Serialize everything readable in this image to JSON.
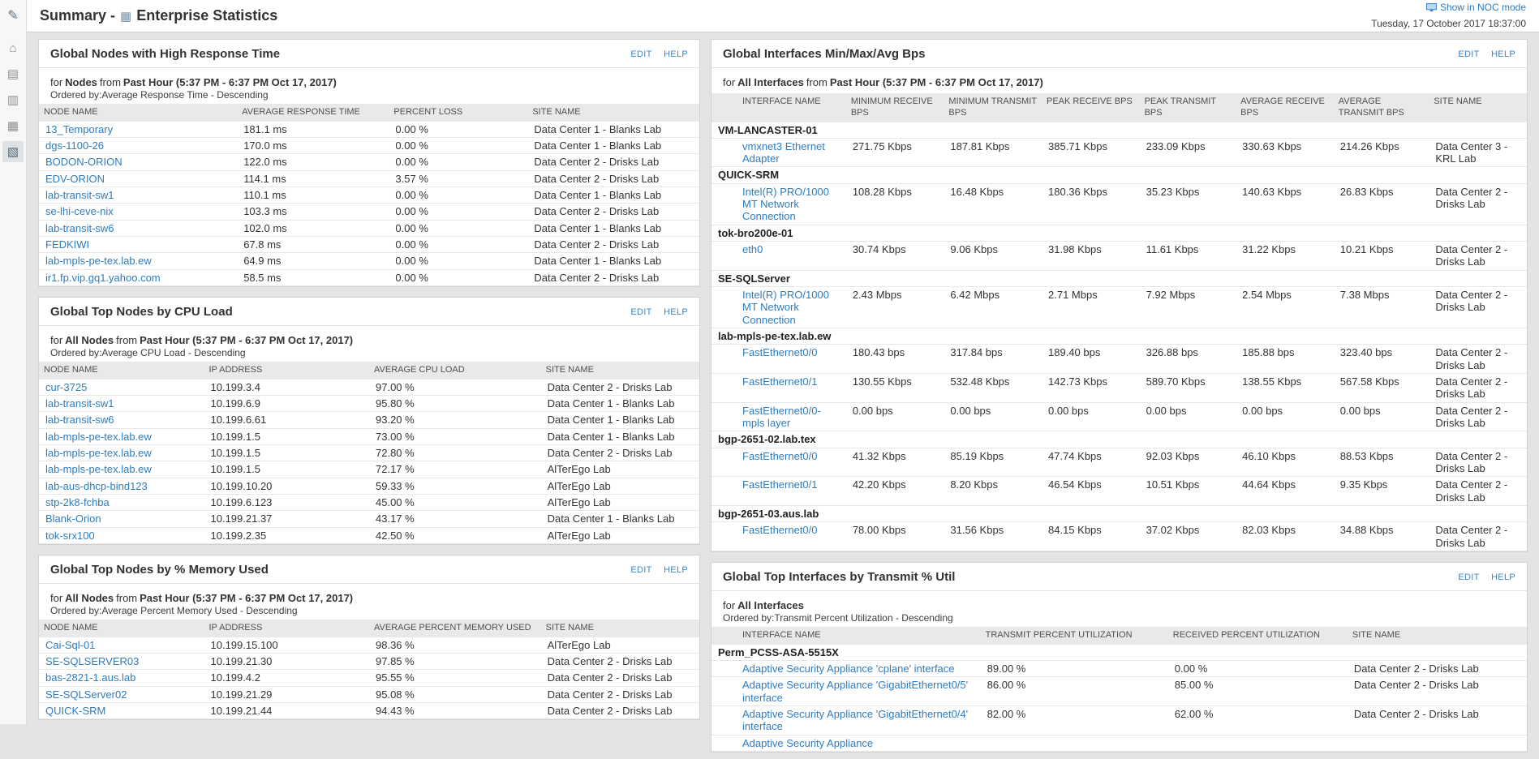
{
  "colors": {
    "link": "#2f7cbe",
    "background": "#e4e4e4",
    "panel": "#ffffff",
    "header_band": "#e9e9e9"
  },
  "sidebar": {
    "icons": [
      {
        "name": "pencil",
        "glyph": "✎"
      },
      {
        "name": "home",
        "glyph": "⌂"
      },
      {
        "name": "summary",
        "glyph": "▤"
      },
      {
        "name": "messages",
        "glyph": "▥"
      },
      {
        "name": "network",
        "glyph": "▦"
      },
      {
        "name": "reports",
        "glyph": "▧"
      }
    ]
  },
  "header": {
    "title_prefix": "Summary -",
    "title": "Enterprise Statistics",
    "noc_link": "Show in NOC mode",
    "timestamp": "Tuesday, 17 October 2017 18:37:00"
  },
  "actions": {
    "edit": "EDIT",
    "help": "HELP"
  },
  "panels": {
    "response_time": {
      "title": "Global Nodes with High Response Time",
      "for_pre": "for",
      "for_scope": "Nodes",
      "for_mid": "from",
      "for_range": "Past Hour (5:37 PM - 6:37 PM Oct 17, 2017)",
      "ordered_by": "Ordered by:Average Response Time - Descending",
      "columns": [
        "NODE NAME",
        "AVERAGE RESPONSE TIME",
        "PERCENT LOSS",
        "SITE NAME"
      ],
      "rows": [
        {
          "name": "13_Temporary",
          "cells": [
            "181.1 ms",
            "0.00 %",
            "Data Center 1 - Blanks Lab"
          ]
        },
        {
          "name": "dgs-1100-26",
          "cells": [
            "170.0 ms",
            "0.00 %",
            "Data Center 1 - Blanks Lab"
          ]
        },
        {
          "name": "BODON-ORION",
          "cells": [
            "122.0 ms",
            "0.00 %",
            "Data Center 2 - Drisks Lab"
          ]
        },
        {
          "name": "EDV-ORION",
          "cells": [
            "114.1 ms",
            "3.57 %",
            "Data Center 2 - Drisks Lab"
          ]
        },
        {
          "name": "lab-transit-sw1",
          "cells": [
            "110.1 ms",
            "0.00 %",
            "Data Center 1 - Blanks Lab"
          ]
        },
        {
          "name": "se-lhi-ceve-nix",
          "cells": [
            "103.3 ms",
            "0.00 %",
            "Data Center 2 - Drisks Lab"
          ]
        },
        {
          "name": "lab-transit-sw6",
          "cells": [
            "102.0 ms",
            "0.00 %",
            "Data Center 1 - Blanks Lab"
          ]
        },
        {
          "name": "FEDKIWI",
          "cells": [
            "67.8 ms",
            "0.00 %",
            "Data Center 2 - Drisks Lab"
          ]
        },
        {
          "name": "lab-mpls-pe-tex.lab.ew",
          "cells": [
            "64.9 ms",
            "0.00 %",
            "Data Center 1 - Blanks Lab"
          ]
        },
        {
          "name": "ir1.fp.vip.gq1.yahoo.com",
          "cells": [
            "58.5 ms",
            "0.00 %",
            "Data Center 2 - Drisks Lab"
          ]
        }
      ]
    },
    "cpu_load": {
      "title": "Global Top Nodes by CPU Load",
      "for_pre": "for",
      "for_scope": "All Nodes",
      "for_mid": "from",
      "for_range": "Past Hour (5:37 PM - 6:37 PM Oct 17, 2017)",
      "ordered_by": "Ordered by:Average CPU Load - Descending",
      "columns": [
        "NODE NAME",
        "IP ADDRESS",
        "AVERAGE CPU LOAD",
        "SITE NAME"
      ],
      "rows": [
        {
          "name": "cur-3725",
          "cells": [
            "10.199.3.4",
            "97.00 %",
            "Data Center 2 - Drisks Lab"
          ]
        },
        {
          "name": "lab-transit-sw1",
          "cells": [
            "10.199.6.9",
            "95.80 %",
            "Data Center 1 - Blanks Lab"
          ]
        },
        {
          "name": "lab-transit-sw6",
          "cells": [
            "10.199.6.61",
            "93.20 %",
            "Data Center 1 - Blanks Lab"
          ]
        },
        {
          "name": "lab-mpls-pe-tex.lab.ew",
          "cells": [
            "10.199.1.5",
            "73.00 %",
            "Data Center 1 - Blanks Lab"
          ]
        },
        {
          "name": "lab-mpls-pe-tex.lab.ew",
          "cells": [
            "10.199.1.5",
            "72.80 %",
            "Data Center 2 - Drisks Lab"
          ]
        },
        {
          "name": "lab-mpls-pe-tex.lab.ew",
          "cells": [
            "10.199.1.5",
            "72.17 %",
            "AlTerEgo Lab"
          ]
        },
        {
          "name": "lab-aus-dhcp-bind123",
          "cells": [
            "10.199.10.20",
            "59.33 %",
            "AlTerEgo Lab"
          ]
        },
        {
          "name": "stp-2k8-fchba",
          "cells": [
            "10.199.6.123",
            "45.00 %",
            "AlTerEgo Lab"
          ]
        },
        {
          "name": "Blank-Orion",
          "cells": [
            "10.199.21.37",
            "43.17 %",
            "Data Center 1 - Blanks Lab"
          ]
        },
        {
          "name": "tok-srx100",
          "cells": [
            "10.199.2.35",
            "42.50 %",
            "AlTerEgo Lab"
          ]
        }
      ]
    },
    "memory_used": {
      "title": "Global Top Nodes by % Memory Used",
      "for_pre": "for",
      "for_scope": "All Nodes",
      "for_mid": "from",
      "for_range": "Past Hour (5:37 PM - 6:37 PM Oct 17, 2017)",
      "ordered_by": "Ordered by:Average Percent Memory Used - Descending",
      "columns": [
        "NODE NAME",
        "IP ADDRESS",
        "AVERAGE PERCENT MEMORY USED",
        "SITE NAME"
      ],
      "rows": [
        {
          "name": "Cai-Sql-01",
          "cells": [
            "10.199.15.100",
            "98.36 %",
            "AlTerEgo Lab"
          ]
        },
        {
          "name": "SE-SQLSERVER03",
          "cells": [
            "10.199.21.30",
            "97.85 %",
            "Data Center 2 - Drisks Lab"
          ]
        },
        {
          "name": "bas-2821-1.aus.lab",
          "cells": [
            "10.199.4.2",
            "95.55 %",
            "Data Center 2 - Drisks Lab"
          ]
        },
        {
          "name": "SE-SQLServer02",
          "cells": [
            "10.199.21.29",
            "95.08 %",
            "Data Center 2 - Drisks Lab"
          ]
        },
        {
          "name": "QUICK-SRM",
          "cells": [
            "10.199.21.44",
            "94.43 %",
            "Data Center 2 - Drisks Lab"
          ]
        }
      ]
    },
    "interfaces_bps": {
      "title": "Global Interfaces Min/Max/Avg Bps",
      "for_pre": "for",
      "for_scope": "All Interfaces",
      "for_mid": "from",
      "for_range": "Past Hour (5:37 PM - 6:37 PM Oct 17, 2017)",
      "columns": [
        "INTERFACE NAME",
        "MINIMUM RECEIVE BPS",
        "MINIMUM TRANSMIT BPS",
        "PEAK RECEIVE BPS",
        "PEAK TRANSMIT BPS",
        "AVERAGE RECEIVE BPS",
        "AVERAGE TRANSMIT BPS",
        "SITE NAME"
      ],
      "rows": [
        {
          "group": "VM-LANCASTER-01"
        },
        {
          "name": "vmxnet3 Ethernet Adapter",
          "cells": [
            "271.75 Kbps",
            "187.81 Kbps",
            "385.71 Kbps",
            "233.09 Kbps",
            "330.63 Kbps",
            "214.26 Kbps",
            "Data Center 3 - KRL Lab"
          ]
        },
        {
          "group": "QUICK-SRM"
        },
        {
          "name": "Intel(R) PRO/1000 MT Network Connection",
          "cells": [
            "108.28 Kbps",
            "16.48 Kbps",
            "180.36 Kbps",
            "35.23 Kbps",
            "140.63 Kbps",
            "26.83 Kbps",
            "Data Center 2 - Drisks Lab"
          ]
        },
        {
          "group": "tok-bro200e-01"
        },
        {
          "name": "eth0",
          "cells": [
            "30.74 Kbps",
            "9.06 Kbps",
            "31.98 Kbps",
            "11.61 Kbps",
            "31.22 Kbps",
            "10.21 Kbps",
            "Data Center 2 - Drisks Lab"
          ]
        },
        {
          "group": "SE-SQLServer"
        },
        {
          "name": "Intel(R) PRO/1000 MT Network Connection",
          "cells": [
            "2.43 Mbps",
            "6.42 Mbps",
            "2.71 Mbps",
            "7.92 Mbps",
            "2.54 Mbps",
            "7.38 Mbps",
            "Data Center 2 - Drisks Lab"
          ]
        },
        {
          "group": "lab-mpls-pe-tex.lab.ew"
        },
        {
          "name": "FastEthernet0/0",
          "cells": [
            "180.43 bps",
            "317.84 bps",
            "189.40 bps",
            "326.88 bps",
            "185.88 bps",
            "323.40 bps",
            "Data Center 2 - Drisks Lab"
          ]
        },
        {
          "name": "FastEthernet0/1",
          "cells": [
            "130.55 Kbps",
            "532.48 Kbps",
            "142.73 Kbps",
            "589.70 Kbps",
            "138.55 Kbps",
            "567.58 Kbps",
            "Data Center 2 - Drisks Lab"
          ]
        },
        {
          "name": "FastEthernet0/0-mpls layer",
          "cells": [
            "0.00 bps",
            "0.00 bps",
            "0.00 bps",
            "0.00 bps",
            "0.00 bps",
            "0.00 bps",
            "Data Center 2 - Drisks Lab"
          ]
        },
        {
          "group": "bgp-2651-02.lab.tex"
        },
        {
          "name": "FastEthernet0/0",
          "cells": [
            "41.32 Kbps",
            "85.19 Kbps",
            "47.74 Kbps",
            "92.03 Kbps",
            "46.10 Kbps",
            "88.53 Kbps",
            "Data Center 2 - Drisks Lab"
          ]
        },
        {
          "name": "FastEthernet0/1",
          "cells": [
            "42.20 Kbps",
            "8.20 Kbps",
            "46.54 Kbps",
            "10.51 Kbps",
            "44.64 Kbps",
            "9.35 Kbps",
            "Data Center 2 - Drisks Lab"
          ]
        },
        {
          "group": "bgp-2651-03.aus.lab"
        },
        {
          "name": "FastEthernet0/0",
          "cells": [
            "78.00 Kbps",
            "31.56 Kbps",
            "84.15 Kbps",
            "37.02 Kbps",
            "82.03 Kbps",
            "34.88 Kbps",
            "Data Center 2 - Drisks Lab"
          ]
        }
      ]
    },
    "transmit_util": {
      "title": "Global Top Interfaces by Transmit % Util",
      "for_pre": "for",
      "for_scope": "All Interfaces",
      "ordered_by": "Ordered by:Transmit Percent Utilization - Descending",
      "columns": [
        "INTERFACE NAME",
        "TRANSMIT PERCENT UTILIZATION",
        "RECEIVED PERCENT UTILIZATION",
        "SITE NAME"
      ],
      "rows": [
        {
          "group": "Perm_PCSS-ASA-5515X"
        },
        {
          "name": "Adaptive Security Appliance 'cplane' interface",
          "cells": [
            "89.00 %",
            "0.00 %",
            "Data Center 2 - Drisks Lab"
          ]
        },
        {
          "name": "Adaptive Security Appliance 'GigabitEthernet0/5' interface",
          "cells": [
            "86.00 %",
            "85.00 %",
            "Data Center 2 - Drisks Lab"
          ]
        },
        {
          "name": "Adaptive Security Appliance 'GigabitEthernet0/4' interface",
          "cells": [
            "82.00 %",
            "62.00 %",
            "Data Center 2 - Drisks Lab"
          ]
        },
        {
          "name": "Adaptive Security Appliance",
          "cells": [
            "",
            "",
            ""
          ]
        }
      ]
    }
  }
}
